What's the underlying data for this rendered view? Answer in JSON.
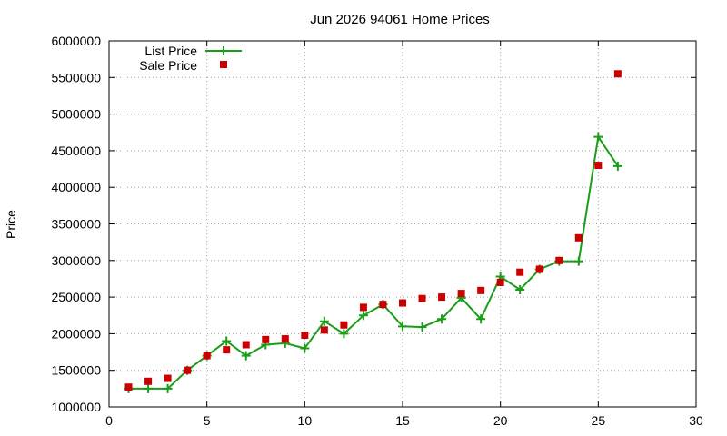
{
  "chart_data": {
    "type": "line",
    "title": "Jun 2026 94061 Home Prices",
    "xlabel": "",
    "ylabel": "Price",
    "xlim": [
      0,
      30
    ],
    "ylim": [
      1000000,
      6000000
    ],
    "xticks": [
      0,
      5,
      10,
      15,
      20,
      25,
      30
    ],
    "yticks": [
      1000000,
      1500000,
      2000000,
      2500000,
      3000000,
      3500000,
      4000000,
      4500000,
      5000000,
      5500000,
      6000000
    ],
    "xtick_labels": [
      "0",
      "5",
      "10",
      "15",
      "20",
      "25",
      "30"
    ],
    "ytick_labels": [
      "1000000",
      "1500000",
      "2000000",
      "2500000",
      "3000000",
      "3500000",
      "4000000",
      "4500000",
      "5000000",
      "5500000",
      "6000000"
    ],
    "grid": true,
    "legend_position": "top-left",
    "series": [
      {
        "name": "List Price",
        "style": "line+cross",
        "color": "#1a9e1a",
        "x": [
          1,
          2,
          3,
          4,
          5,
          6,
          7,
          8,
          9,
          10,
          11,
          12,
          13,
          14,
          15,
          16,
          17,
          18,
          19,
          20,
          21,
          22,
          23,
          24,
          25,
          26
        ],
        "y": [
          1250000,
          1250000,
          1250000,
          1500000,
          1700000,
          1900000,
          1700000,
          1850000,
          1870000,
          1800000,
          2170000,
          2000000,
          2250000,
          2400000,
          2100000,
          2090000,
          2200000,
          2490000,
          2200000,
          2780000,
          2600000,
          2880000,
          2990000,
          2990000,
          4690000,
          4290000
        ]
      },
      {
        "name": "Sale Price",
        "style": "square-points",
        "color": "#cc0000",
        "x": [
          1,
          2,
          3,
          4,
          5,
          6,
          7,
          8,
          9,
          10,
          11,
          12,
          13,
          14,
          15,
          16,
          17,
          18,
          19,
          20,
          21,
          22,
          23,
          24,
          25,
          26
        ],
        "y": [
          1270000,
          1350000,
          1390000,
          1500000,
          1700000,
          1780000,
          1850000,
          1920000,
          1930000,
          1980000,
          2050000,
          2120000,
          2360000,
          2400000,
          2420000,
          2480000,
          2500000,
          2550000,
          2590000,
          2700000,
          2840000,
          2880000,
          3000000,
          3310000,
          4300000,
          5550000
        ]
      }
    ]
  }
}
